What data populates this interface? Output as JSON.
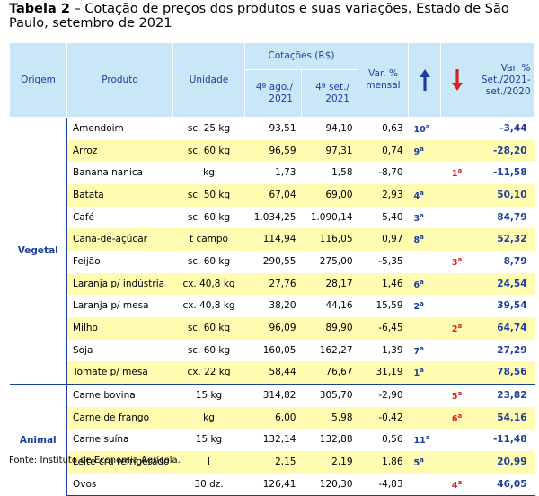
{
  "title": {
    "label": "Tabela 2",
    "text": " – Cotação de preços dos produtos e suas variações, Estado de São Paulo, setembro de 2021"
  },
  "header": {
    "origem": "Origem",
    "produto": "Produto",
    "unidade": "Unidade",
    "cotacoes": "Cotações (R$)",
    "col_ago": "4ª ago./ 2021",
    "col_set": "4ª set./ 2021",
    "var_mensal": "Var. % mensal",
    "up_arrow_icon": "arrow-up-icon",
    "down_arrow_icon": "arrow-down-icon",
    "var_anual": "Var. % Set./2021-set./2020"
  },
  "colors": {
    "header_bg": "#c9e7f7",
    "header_text": "#1b3f9c",
    "highlight_row": "#fffbb0",
    "down_rank": "#d91e1e"
  },
  "groups": [
    {
      "origem": "Vegetal",
      "rows": [
        {
          "produto": "Amendoim",
          "unidade": "sc. 25 kg",
          "ago": "93,51",
          "set": "94,10",
          "var": "0,63",
          "up": "10",
          "dn": "",
          "anual": "-3,44"
        },
        {
          "produto": "Arroz",
          "unidade": "sc. 60 kg",
          "ago": "96,59",
          "set": "97,31",
          "var": "0,74",
          "up": "9",
          "dn": "",
          "anual": "-28,20"
        },
        {
          "produto": "Banana nanica",
          "unidade": "kg",
          "ago": "1,73",
          "set": "1,58",
          "var": "-8,70",
          "up": "",
          "dn": "1",
          "anual": "-11,58"
        },
        {
          "produto": "Batata",
          "unidade": "sc. 50 kg",
          "ago": "67,04",
          "set": "69,00",
          "var": "2,93",
          "up": "4",
          "dn": "",
          "anual": "50,10"
        },
        {
          "produto": "Café",
          "unidade": "sc. 60 kg",
          "ago": "1.034,25",
          "set": "1.090,14",
          "var": "5,40",
          "up": "3",
          "dn": "",
          "anual": "84,79"
        },
        {
          "produto": "Cana-de-açúcar",
          "unidade": "t campo",
          "ago": "114,94",
          "set": "116,05",
          "var": "0,97",
          "up": "8",
          "dn": "",
          "anual": "52,32"
        },
        {
          "produto": "Feijão",
          "unidade": "sc. 60 kg",
          "ago": "290,55",
          "set": "275,00",
          "var": "-5,35",
          "up": "",
          "dn": "3",
          "anual": "8,79"
        },
        {
          "produto": "Laranja p/ indústria",
          "unidade": "cx. 40,8 kg",
          "ago": "27,76",
          "set": "28,17",
          "var": "1,46",
          "up": "6",
          "dn": "",
          "anual": "24,54"
        },
        {
          "produto": "Laranja p/ mesa",
          "unidade": "cx. 40,8 kg",
          "ago": "38,20",
          "set": "44,16",
          "var": "15,59",
          "up": "2",
          "dn": "",
          "anual": "39,54"
        },
        {
          "produto": "Milho",
          "unidade": "sc. 60 kg",
          "ago": "96,09",
          "set": "89,90",
          "var": "-6,45",
          "up": "",
          "dn": "2",
          "anual": "64,74"
        },
        {
          "produto": "Soja",
          "unidade": "sc. 60 kg",
          "ago": "160,05",
          "set": "162,27",
          "var": "1,39",
          "up": "7",
          "dn": "",
          "anual": "27,29"
        },
        {
          "produto": "Tomate p/ mesa",
          "unidade": "cx. 22 kg",
          "ago": "58,44",
          "set": "76,67",
          "var": "31,19",
          "up": "1",
          "dn": "",
          "anual": "78,56"
        }
      ]
    },
    {
      "origem": "Animal",
      "rows": [
        {
          "produto": "Carne bovina",
          "unidade": "15 kg",
          "ago": "314,82",
          "set": "305,70",
          "var": "-2,90",
          "up": "",
          "dn": "5",
          "anual": "23,82"
        },
        {
          "produto": "Carne de frango",
          "unidade": "kg",
          "ago": "6,00",
          "set": "5,98",
          "var": "-0,42",
          "up": "",
          "dn": "6",
          "anual": "54,16"
        },
        {
          "produto": "Carne suína",
          "unidade": "15 kg",
          "ago": "132,14",
          "set": "132,88",
          "var": "0,56",
          "up": "11",
          "dn": "",
          "anual": "-11,48"
        },
        {
          "produto": "Leite cru refrigerado",
          "unidade": "l",
          "ago": "2,15",
          "set": "2,19",
          "var": "1,86",
          "up": "5",
          "dn": "",
          "anual": "20,99"
        },
        {
          "produto": "Ovos",
          "unidade": "30 dz.",
          "ago": "126,41",
          "set": "120,30",
          "var": "-4,83",
          "up": "",
          "dn": "4",
          "anual": "46,05"
        }
      ]
    }
  ],
  "footer": "Fonte: Instituto de Economia Agrícola."
}
